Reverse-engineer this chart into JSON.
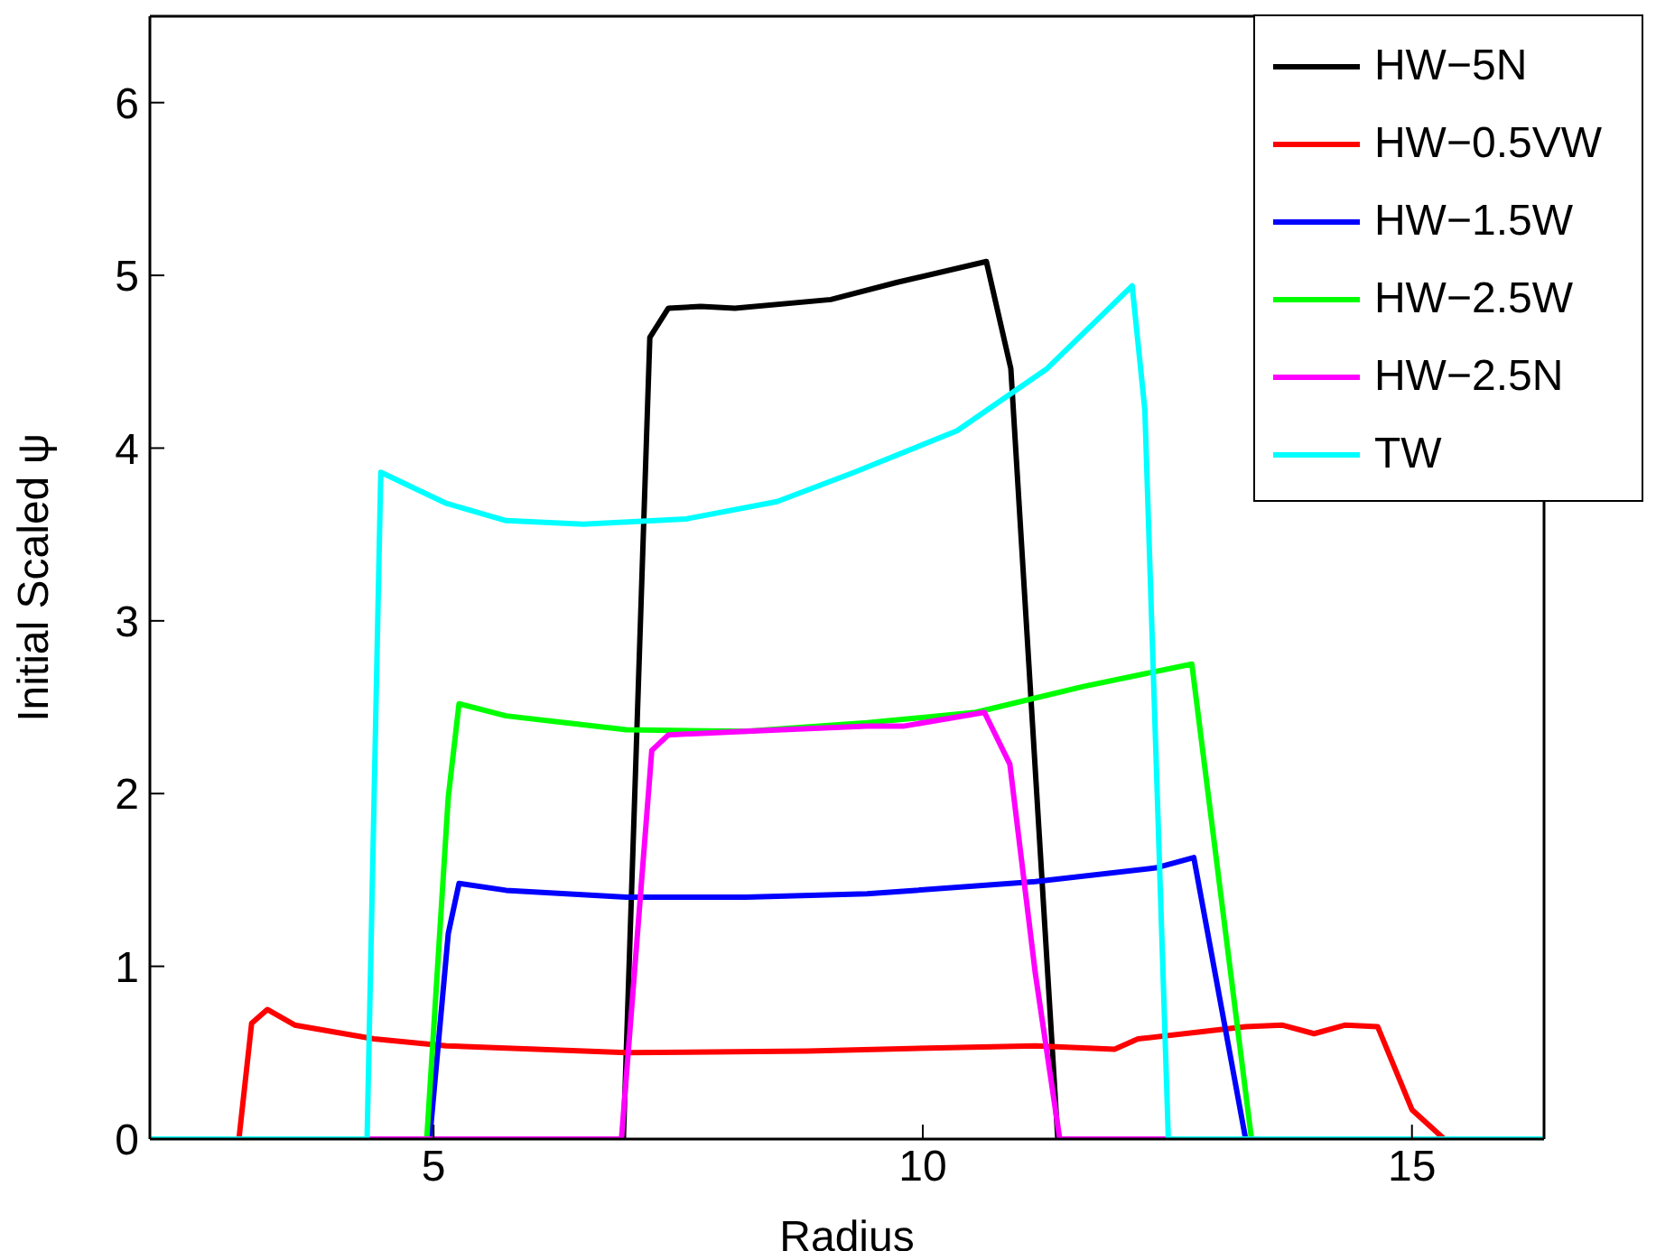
{
  "chart_data": {
    "type": "line",
    "xlabel": "Radius",
    "ylabel": "Initial Scaled ψ",
    "xlim": [
      2.1,
      16.35
    ],
    "xticks": [
      5,
      10,
      15
    ],
    "ylim": [
      0,
      6.5
    ],
    "yticks": [
      0,
      1,
      2,
      3,
      4,
      5,
      6
    ],
    "legend": "top right",
    "marker": "none",
    "line_style": "solid",
    "series": [
      {
        "name": "HW−5N",
        "color": "#000000",
        "x": [
          2.1,
          6.94,
          7.21,
          7.4,
          7.73,
          8.08,
          9.06,
          9.74,
          10.65,
          10.9,
          11.38,
          16.35
        ],
        "values": [
          0,
          0,
          4.64,
          4.81,
          4.82,
          4.81,
          4.86,
          4.96,
          5.08,
          4.46,
          0,
          0
        ]
      },
      {
        "name": "HW−0.5VW",
        "color": "#ff0000",
        "x": [
          2.1,
          3.01,
          3.14,
          3.3,
          3.58,
          4.39,
          5.13,
          6.97,
          8.82,
          11.15,
          11.96,
          12.2,
          13.3,
          13.67,
          14.0,
          14.32,
          14.65,
          15.0,
          15.33,
          16.35
        ],
        "values": [
          0,
          0,
          0.67,
          0.75,
          0.66,
          0.58,
          0.54,
          0.5,
          0.51,
          0.54,
          0.52,
          0.58,
          0.65,
          0.66,
          0.61,
          0.66,
          0.65,
          0.17,
          0,
          0
        ]
      },
      {
        "name": "HW−1.5W",
        "color": "#0000ff",
        "x": [
          2.1,
          4.96,
          5.15,
          5.26,
          5.74,
          6.97,
          8.19,
          9.43,
          9.93,
          11.15,
          12.38,
          12.77,
          13.3,
          16.35
        ],
        "values": [
          0,
          0,
          1.19,
          1.48,
          1.44,
          1.4,
          1.4,
          1.42,
          1.44,
          1.49,
          1.57,
          1.63,
          0,
          0
        ]
      },
      {
        "name": "HW−2.5W",
        "color": "#00ff00",
        "x": [
          2.1,
          4.93,
          5.15,
          5.26,
          5.74,
          6.35,
          6.97,
          8.19,
          9.43,
          10.54,
          11.64,
          12.75,
          13.36,
          16.35
        ],
        "values": [
          0,
          0,
          1.98,
          2.52,
          2.45,
          2.41,
          2.37,
          2.36,
          2.41,
          2.47,
          2.62,
          2.75,
          0,
          0
        ]
      },
      {
        "name": "HW−2.5N",
        "color": "#ff00ff",
        "x": [
          2.1,
          6.92,
          7.23,
          7.4,
          8.19,
          9.43,
          9.8,
          10.63,
          10.89,
          11.15,
          11.4,
          16.35
        ],
        "values": [
          0,
          0,
          2.25,
          2.34,
          2.36,
          2.39,
          2.39,
          2.47,
          2.17,
          0.96,
          0,
          0
        ]
      },
      {
        "name": "TW",
        "color": "#00ffff",
        "x": [
          2.1,
          4.32,
          4.46,
          5.13,
          5.74,
          6.53,
          7.58,
          8.51,
          9.3,
          10.35,
          11.27,
          12.14,
          12.27,
          12.51,
          16.35
        ],
        "values": [
          0,
          0,
          3.86,
          3.68,
          3.58,
          3.56,
          3.59,
          3.69,
          3.86,
          4.1,
          4.46,
          4.94,
          4.22,
          0,
          0
        ]
      }
    ]
  }
}
